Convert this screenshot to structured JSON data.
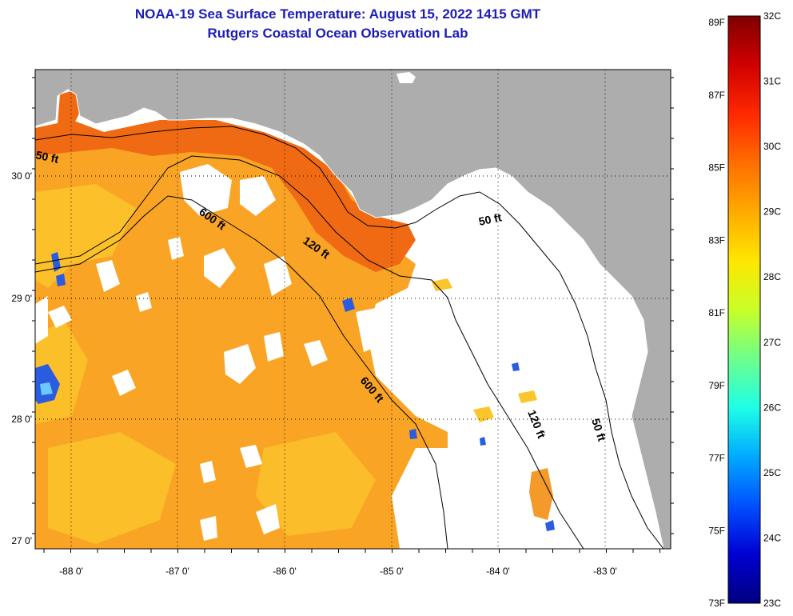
{
  "title_line1": "NOAA-19 Sea Surface Temperature:  August 15, 2022 1415 GMT",
  "title_line2": "Rutgers Coastal Ocean Observation Lab",
  "lat_labels": [
    "30 0'",
    "29 0'",
    "28 0'",
    "27 0'"
  ],
  "lon_labels": [
    "-88 0'",
    "-87 0'",
    "-86 0'",
    "-85 0'",
    "-84 0'",
    "-83 0'"
  ],
  "contour_labels": {
    "c50_west": "50 ft",
    "c600_north": "600 ft",
    "c120_north": "120 ft",
    "c50_east": "50 ft",
    "c600_south": "600 ft",
    "c120_south": "120 ft",
    "c50_south": "50 ft"
  },
  "colorbar": {
    "fahrenheit": [
      "89F",
      "87F",
      "85F",
      "83F",
      "81F",
      "79F",
      "77F",
      "75F",
      "73F"
    ],
    "celsius": [
      "32C",
      "31C",
      "30C",
      "29C",
      "28C",
      "27C",
      "26C",
      "25C",
      "24C",
      "23C"
    ],
    "colors": [
      "#800000",
      "#d00000",
      "#ff2800",
      "#ff6e00",
      "#ffaa00",
      "#ffe600",
      "#c8ff28",
      "#6eff8c",
      "#1effe6",
      "#00aaff",
      "#0050ff",
      "#0000d2",
      "#000080"
    ]
  },
  "colors": {
    "land": "#adadad",
    "warm_nearshore": "#f06a14",
    "gulf_orange": "#f9a424",
    "gulf_yellow": "#fbc62c",
    "cloud": "#ffffff",
    "cool_patch": "#2a5be0",
    "title": "#1c1cb8"
  }
}
